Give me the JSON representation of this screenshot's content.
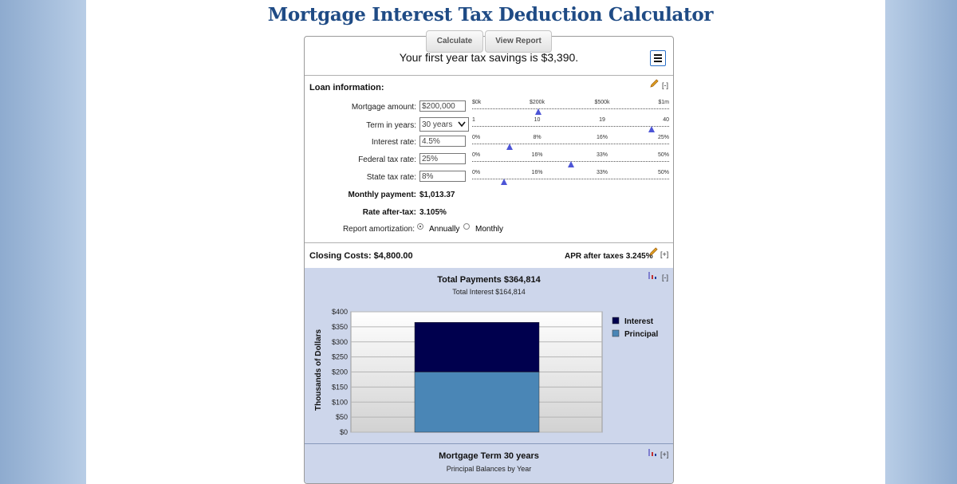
{
  "title": "Mortgage Interest Tax Deduction Calculator",
  "tabs": {
    "calculate": "Calculate",
    "view_report": "View Report"
  },
  "savings_text": "Your first year tax savings is $3,390.",
  "loan": {
    "section_label": "Loan information:",
    "collapse": "[-]",
    "mortgage_amount": {
      "label": "Mortgage amount:",
      "value": "$200,000",
      "ticks": [
        "$0k",
        "$200k",
        "$500k",
        "$1m"
      ]
    },
    "term": {
      "label": "Term in years:",
      "value": "30 years",
      "ticks": [
        "1",
        "10",
        "19",
        "40"
      ]
    },
    "interest_rate": {
      "label": "Interest rate:",
      "value": "4.5%",
      "ticks": [
        "0%",
        "8%",
        "16%",
        "25%"
      ]
    },
    "federal_tax": {
      "label": "Federal tax rate:",
      "value": "25%",
      "ticks": [
        "0%",
        "16%",
        "33%",
        "50%"
      ]
    },
    "state_tax": {
      "label": "State tax rate:",
      "value": "8%",
      "ticks": [
        "0%",
        "16%",
        "33%",
        "50%"
      ]
    },
    "monthly_payment": {
      "label": "Monthly payment:",
      "value": "$1,013.37"
    },
    "rate_after_tax": {
      "label": "Rate after-tax:",
      "value": "3.105%"
    },
    "amortization": {
      "label": "Report amortization:",
      "annually": "Annually",
      "monthly": "Monthly",
      "selected": "Annually"
    }
  },
  "closing": {
    "label": "Closing Costs: $4,800.00",
    "apr": "APR after taxes 3.245%",
    "expand": "[+]"
  },
  "chart_section": {
    "collapse": "[-]",
    "colors": {
      "interest": "#00004e",
      "principal": "#4a86b6"
    }
  },
  "chart_data": {
    "type": "bar",
    "title": "Total Payments $364,814",
    "subtitle": "Total Interest $164,814",
    "ylabel": "Thousands of Dollars",
    "ylim": [
      0,
      400
    ],
    "yticks": [
      "$0",
      "$50",
      "$100",
      "$150",
      "$200",
      "$250",
      "$300",
      "$350",
      "$400"
    ],
    "stacked": true,
    "series": [
      {
        "name": "Principal",
        "values": [
          200
        ]
      },
      {
        "name": "Interest",
        "values": [
          164.814
        ]
      }
    ],
    "legend": "right"
  },
  "term_section": {
    "title": "Mortgage Term 30 years",
    "subtitle": "Principal Balances by Year",
    "expand": "[+]"
  }
}
